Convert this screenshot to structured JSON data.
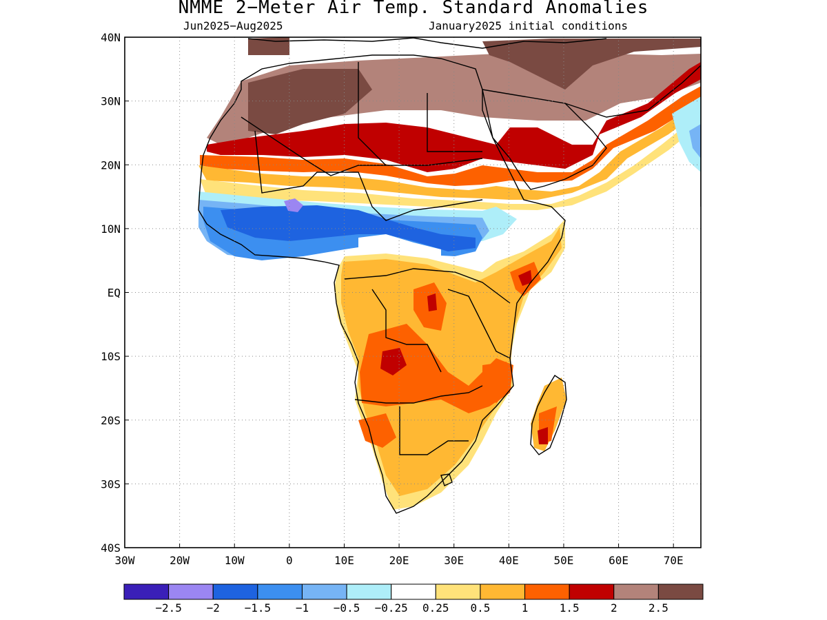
{
  "title": "NMME 2−Meter Air Temp. Standard Anomalies",
  "subtitle_left": "Jun2025−Aug2025",
  "subtitle_right": "January2025 initial conditions",
  "axes": {
    "lat_labels": [
      "40N",
      "30N",
      "20N",
      "10N",
      "EQ",
      "10S",
      "20S",
      "30S",
      "40S"
    ],
    "lat_values": [
      40,
      30,
      20,
      10,
      0,
      -10,
      -20,
      -30,
      -40
    ],
    "lon_labels": [
      "30W",
      "20W",
      "10W",
      "0",
      "10E",
      "20E",
      "30E",
      "40E",
      "50E",
      "60E",
      "70E"
    ],
    "lon_values": [
      -30,
      -20,
      -10,
      0,
      10,
      20,
      30,
      40,
      50,
      60,
      70
    ],
    "lon_range": [
      -30,
      75
    ],
    "lat_range": [
      -40,
      40
    ],
    "grid": "dotted"
  },
  "colorbar": {
    "colors": [
      "#3a1fb8",
      "#9b86f2",
      "#1e63e0",
      "#3c8ff0",
      "#76b4f5",
      "#aeeef9",
      "#ffffff",
      "#ffe27a",
      "#ffb833",
      "#fd6100",
      "#c00000",
      "#b3837a",
      "#7a4a42"
    ],
    "labels": [
      "−2.5",
      "−2",
      "−1.5",
      "−1",
      "−0.5",
      "−0.25",
      "0.25",
      "0.5",
      "1",
      "1.5",
      "2",
      "2.5"
    ]
  },
  "colors": {
    "land_outline": "#000000",
    "background": "#ffffff"
  }
}
